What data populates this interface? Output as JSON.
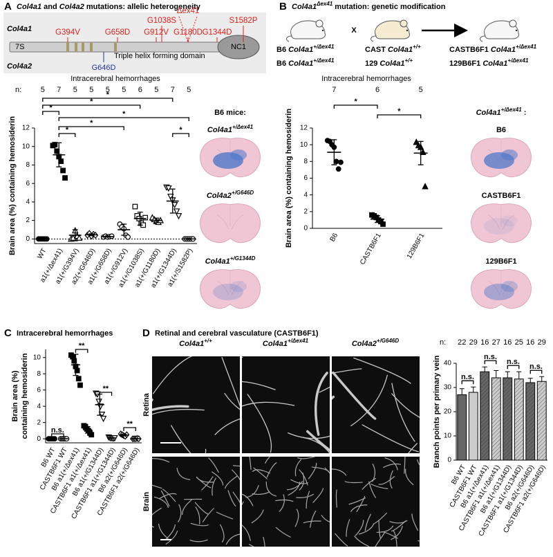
{
  "panels": {
    "a": {
      "letter": "A",
      "title": [
        {
          "text": "Col4a1",
          "italic": true
        },
        {
          "text": " and "
        },
        {
          "text": "Col4a2",
          "italic": true
        },
        {
          "text": " mutations: allelic heterogeneity"
        }
      ],
      "diagram": {
        "genes": [
          "Col4a1",
          "Col4a2"
        ],
        "domains": [
          "7S",
          "Triple helix forming domain",
          "NC1"
        ],
        "col4a1_mutations": [
          "G394V",
          "G658D",
          "G912V",
          "G1038S",
          "Δex41",
          "G1180D",
          "G1344D",
          "S1582P"
        ],
        "col4a2_mutations": [
          "G646D"
        ]
      },
      "image_header": "B6 mice:",
      "image_labels": [
        [
          {
            "text": "Col4a1",
            "italic": true
          },
          {
            "text": "+/Δex41",
            "italic": true,
            "sup": true
          }
        ],
        [
          {
            "text": "Col4a2",
            "italic": true
          },
          {
            "text": "+/G646D",
            "italic": true,
            "sup": true
          }
        ],
        [
          {
            "text": "Col4a1",
            "italic": true
          },
          {
            "text": "+/G1344D",
            "italic": true,
            "sup": true
          }
        ]
      ]
    },
    "b": {
      "letter": "B",
      "title": [
        {
          "text": "Col4a1",
          "italic": true
        },
        {
          "text": "Δex41",
          "italic": true,
          "sup": true
        },
        {
          "text": " mutation: genetic modification"
        }
      ],
      "cross": "X",
      "genotypes": [
        [
          [
            {
              "text": "B6 "
            },
            {
              "text": "Col4a1",
              "italic": true
            },
            {
              "text": "+/Δex41",
              "italic": true,
              "sup": true
            }
          ],
          [
            {
              "text": "CAST "
            },
            {
              "text": "Col4a1",
              "italic": true
            },
            {
              "text": "+/+",
              "italic": true,
              "sup": true
            }
          ],
          [
            {
              "text": "CASTB6F1 "
            },
            {
              "text": "Col4a1",
              "italic": true
            },
            {
              "text": "+/Δex41",
              "italic": true,
              "sup": true
            }
          ]
        ],
        [
          [
            {
              "text": "B6 "
            },
            {
              "text": "Col4a1",
              "italic": true
            },
            {
              "text": "+/Δex41",
              "italic": true,
              "sup": true
            }
          ],
          [
            {
              "text": "129 "
            },
            {
              "text": "Col4a1",
              "italic": true
            },
            {
              "text": "+/+",
              "italic": true,
              "sup": true
            }
          ],
          [
            {
              "text": "129B6F1 "
            },
            {
              "text": "Col4a1",
              "italic": true
            },
            {
              "text": "+/Δex41",
              "italic": true,
              "sup": true
            }
          ]
        ]
      ],
      "image_header": [
        {
          "text": "Col4a1",
          "italic": true
        },
        {
          "text": "+/Δex41",
          "italic": true,
          "sup": true
        },
        {
          "text": " :"
        }
      ],
      "image_labels": [
        "B6",
        "CASTB6F1",
        "129B6F1"
      ]
    },
    "c": {
      "letter": "C"
    },
    "d": {
      "letter": "D",
      "title": "Retinal and cerebral vasculature (CASTB6F1)",
      "column_labels": [
        [
          {
            "text": "Col4a1",
            "italic": true
          },
          {
            "text": "+/+",
            "italic": true,
            "sup": true
          }
        ],
        [
          {
            "text": "Col4a1",
            "italic": true
          },
          {
            "text": "+/Δex41",
            "italic": true,
            "sup": true
          }
        ],
        [
          {
            "text": "Col4a2",
            "italic": true
          },
          {
            "text": "+/G646D",
            "italic": true,
            "sup": true
          }
        ]
      ],
      "row_labels": [
        "Retina",
        "Brain"
      ]
    }
  },
  "chart_data": [
    {
      "type": "dotplot",
      "title": "Intracerebral hemorrhages",
      "n_label": "n:",
      "n": [
        5,
        7,
        5,
        5,
        5,
        5,
        6,
        5,
        7,
        5
      ],
      "ylabel": [
        "Brain area (%) containing hemosiderin"
      ],
      "categories": [
        "WT",
        "a1(+/Δex41)",
        "a1(+/G394V)",
        "a2(+/G646D)",
        "a1(+/G658D)",
        "a1(+/G912V)",
        "a1(+/G1038S)",
        "a1(+/G1180D)",
        "a1(+/G1344D)",
        "a1(+/S1582P)"
      ],
      "points": [
        [
          0,
          0,
          0,
          0,
          0
        ],
        [
          10.1,
          10.2,
          9.5,
          8.9,
          8.4,
          7.4,
          6.6
        ],
        [
          0,
          0.1,
          0.9,
          0.3,
          0.1
        ],
        [
          0.4,
          0.6,
          0.3,
          0.5,
          0.4
        ],
        [
          0.2,
          0.3,
          0.2,
          0.25,
          0.3
        ],
        [
          1.6,
          1.3,
          1.1,
          0.4,
          0.2
        ],
        [
          3.5,
          2.5,
          2.2,
          1.7,
          1.5,
          2.3
        ],
        [
          2.3,
          2.1,
          1.9,
          1.8,
          2.0
        ],
        [
          5.6,
          5.5,
          4.6,
          4.2,
          3.7,
          3.0,
          2.5
        ],
        [
          0,
          0,
          0,
          0,
          0
        ]
      ],
      "means": [
        0,
        9.1,
        0.4,
        0.45,
        0.25,
        1.0,
        2.2,
        2.0,
        4.1,
        0
      ],
      "sd": [
        0,
        1.3,
        0.6,
        0.1,
        0.05,
        0.6,
        0.7,
        0.25,
        1.3,
        0.05
      ],
      "markers": [
        "circle",
        "square",
        "triangle",
        "diamond",
        "circle",
        "circle",
        "square",
        "triangle",
        "triangle-down",
        "circle"
      ],
      "filled": [
        true,
        true,
        false,
        false,
        false,
        false,
        false,
        false,
        false,
        false
      ],
      "color": "#000000",
      "ylim": [
        -0.5,
        12
      ],
      "yticks": [
        0,
        2,
        4,
        6,
        8,
        10,
        12
      ],
      "reference_line": 0,
      "brackets": [
        {
          "from": 0,
          "to": 8,
          "label": "*"
        },
        {
          "from": 0,
          "to": 6,
          "label": "*"
        },
        {
          "from": 0,
          "to": 1,
          "label": "*"
        },
        {
          "from": 1,
          "to": 9,
          "label": "*"
        },
        {
          "from": 1,
          "to": 5,
          "label": "*"
        },
        {
          "from": 1,
          "to": 2,
          "label": "*"
        },
        {
          "from": 8,
          "to": 9,
          "label": "*"
        }
      ]
    },
    {
      "type": "dotplot",
      "title": "Intracerebral hemorrhages",
      "n": [
        7,
        6,
        5
      ],
      "ylabel": [
        "Brain area (%) containing hemosiderin"
      ],
      "categories": [
        "B6",
        "CASTB6F1",
        "129B6F1"
      ],
      "points": [
        [
          10.5,
          10.4,
          10.0,
          9.7,
          8.0,
          7.1,
          7.9
        ],
        [
          1.6,
          1.5,
          1.3,
          1.0,
          0.8,
          0.5
        ],
        [
          10.3,
          9.9,
          9.7,
          9.1,
          5.0
        ]
      ],
      "means": [
        9.1,
        1.1,
        9.0
      ],
      "sd": [
        1.5,
        0.4,
        1.4
      ],
      "markers": [
        "circle",
        "square",
        "triangle"
      ],
      "filled": [
        true,
        true,
        true
      ],
      "color": "#000000",
      "ylim": [
        0,
        12
      ],
      "yticks": [
        0,
        2,
        4,
        6,
        8,
        10,
        12
      ],
      "brackets": [
        {
          "from": 0,
          "to": 1,
          "label": "*"
        },
        {
          "from": 1,
          "to": 2,
          "label": "*"
        }
      ]
    },
    {
      "type": "dotplot",
      "title": "Intracerebral hemorrhages",
      "ylabel": [
        "Brain area (%)",
        "containing hemosiderin"
      ],
      "categories": [
        "B6 WT",
        "CASTB6F1 WT",
        "B6 a1(+/Δex41)",
        "CASTB6F1 a1(+/Δex41)",
        "B6 a1(+/G1344D)",
        "CASTB6F1 a1(+/G1344D)",
        "B6 a2(+/G646D)",
        "CASTB6F1 a2(+/G646D)"
      ],
      "points": [
        [
          0,
          0,
          0,
          0,
          0
        ],
        [
          0,
          0,
          0,
          0,
          0
        ],
        [
          10.3,
          10.1,
          9.6,
          8.9,
          8.4,
          7.4,
          6.6
        ],
        [
          1.6,
          1.5,
          1.2,
          1.0,
          0.7,
          0.5
        ],
        [
          5.6,
          5.5,
          4.6,
          4.0,
          3.0,
          2.5
        ],
        [
          0.2,
          0.1,
          0.1,
          0.05,
          0.1
        ],
        [
          0.6,
          0.5,
          0.4,
          0.3,
          0.5
        ],
        [
          0,
          0,
          0,
          0.05,
          0
        ]
      ],
      "means": [
        0,
        0,
        9.1,
        1.1,
        4.2,
        0.1,
        0.45,
        0
      ],
      "sd": [
        0,
        0,
        1.3,
        0.4,
        1.3,
        0.05,
        0.1,
        0.02
      ],
      "markers": [
        "circle",
        "circle",
        "square",
        "square",
        "triangle-down",
        "triangle-down",
        "diamond",
        "diamond"
      ],
      "filled": [
        true,
        false,
        true,
        true,
        false,
        false,
        false,
        false
      ],
      "color": "#000000",
      "ylim": [
        -0.5,
        11
      ],
      "yticks": [
        0,
        2,
        4,
        6,
        8,
        10
      ],
      "brackets": [
        {
          "from": 0,
          "to": 1,
          "label": "n.s."
        },
        {
          "from": 2,
          "to": 3,
          "label": "**"
        },
        {
          "from": 4,
          "to": 5,
          "label": "**"
        },
        {
          "from": 6,
          "to": 7,
          "label": "**"
        }
      ]
    },
    {
      "type": "bar",
      "n_label": "n:",
      "n": [
        22,
        29,
        16,
        27,
        16,
        25,
        16,
        29
      ],
      "ylabel": [
        "Branch points per primary vein"
      ],
      "categories": [
        "B6 WT",
        "CASTB6F1 WT",
        "B6 a1(+/Δex41)",
        "CASTB6F1 a1(+/Δex41)",
        "B6 a1(+/G1344D)",
        "CASTB6F1 a1(+/G1344D)",
        "B6 a2(+/G646D)",
        "CASTB6F1 a2(+/G646D)"
      ],
      "values": [
        27,
        28,
        36.5,
        34,
        34,
        33.5,
        32,
        32.5
      ],
      "errors": [
        2.5,
        2.2,
        2,
        3,
        2.5,
        3,
        1.8,
        2
      ],
      "colors": [
        "#666666",
        "#cccccc",
        "#666666",
        "#cccccc",
        "#666666",
        "#cccccc",
        "#666666",
        "#cccccc"
      ],
      "hatched": [
        false,
        false,
        true,
        true,
        true,
        true,
        true,
        true
      ],
      "ylim": [
        0,
        40
      ],
      "yticks": [
        0,
        10,
        20,
        30,
        40
      ],
      "brackets": [
        {
          "from": 0,
          "to": 1,
          "label": "n.s."
        },
        {
          "from": 2,
          "to": 3,
          "label": "n.s."
        },
        {
          "from": 4,
          "to": 5,
          "label": "n.s."
        },
        {
          "from": 6,
          "to": 7,
          "label": "n.s."
        }
      ]
    }
  ]
}
